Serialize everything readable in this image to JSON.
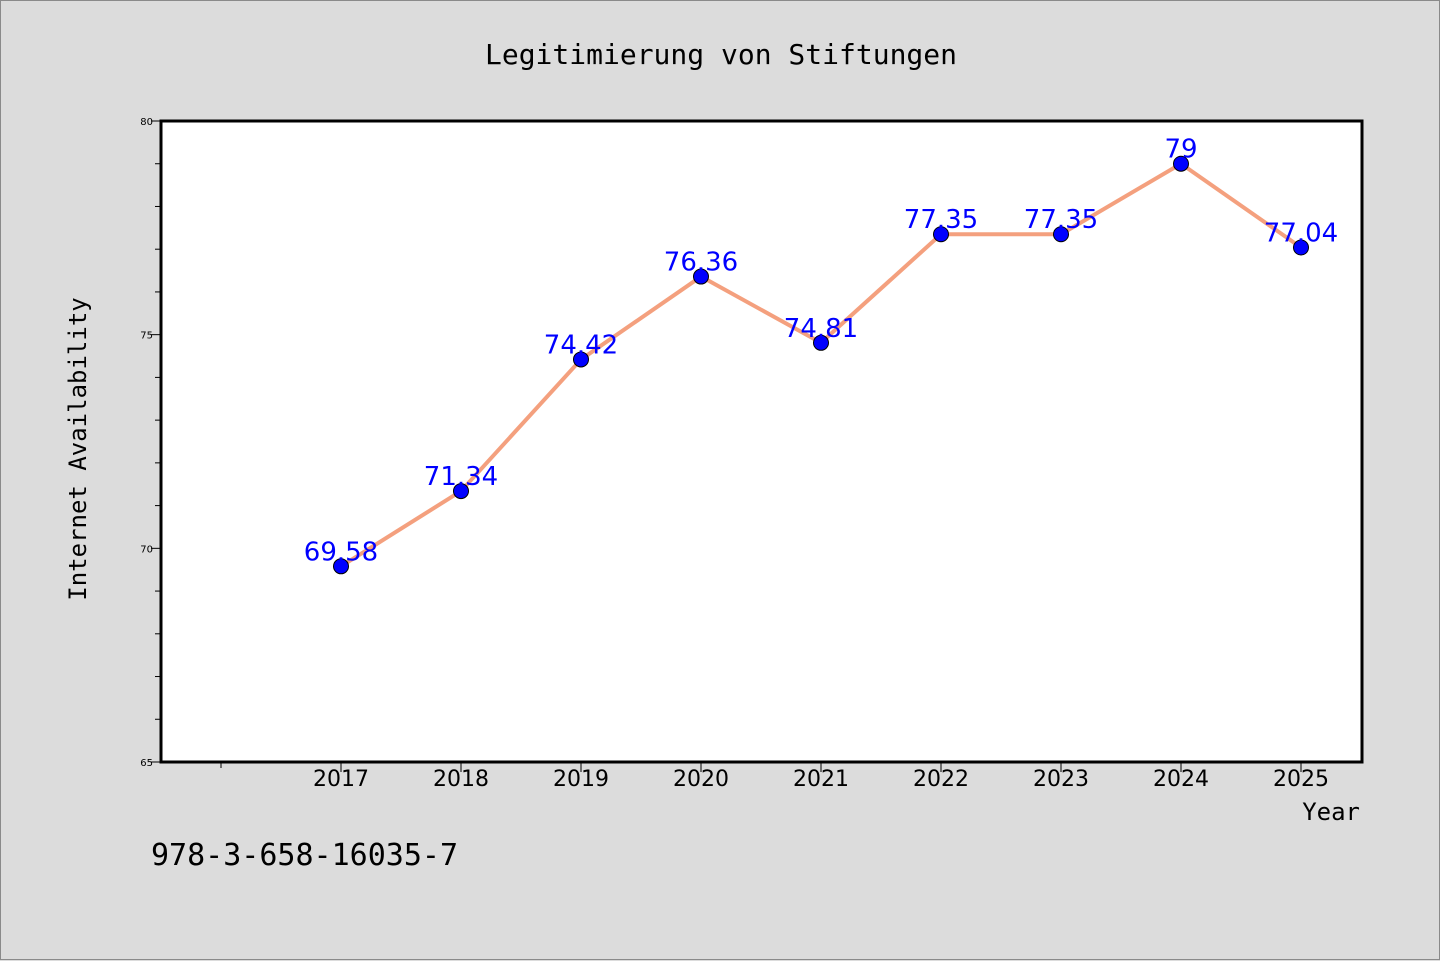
{
  "chart_data": {
    "type": "line",
    "title": "Legitimierung von Stiftungen",
    "xlabel": "Year",
    "ylabel": "Internet Availability",
    "categories": [
      "2017",
      "2018",
      "2019",
      "2020",
      "2021",
      "2022",
      "2023",
      "2024",
      "2025"
    ],
    "series": [
      {
        "values": [
          69.58,
          71.34,
          74.42,
          76.36,
          74.81,
          77.35,
          77.35,
          79,
          77.04
        ],
        "data_labels": [
          "69.58",
          "71.34",
          "74.42",
          "76.36",
          "74.81",
          "77.35",
          "77.35",
          "79",
          "77.04"
        ],
        "line_color": "#f4a07e",
        "marker_color": "#0000ff"
      }
    ],
    "ylim": [
      65,
      80
    ],
    "yticks": [
      65,
      70,
      75,
      80
    ],
    "ytick_labels": [
      "65",
      "70",
      "75",
      "80"
    ],
    "grid": false,
    "legend": "none"
  },
  "footer": {
    "text": "978-3-658-16035-7"
  },
  "colors": {
    "background": "#dcdcdc",
    "plot_background": "#ffffff",
    "line": "#f4a07e",
    "marker": "#0000ff",
    "data_label": "#0000ff"
  }
}
